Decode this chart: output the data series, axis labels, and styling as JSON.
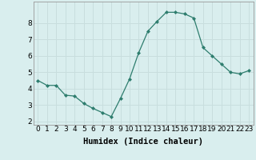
{
  "x": [
    0,
    1,
    2,
    3,
    4,
    5,
    6,
    7,
    8,
    9,
    10,
    11,
    12,
    13,
    14,
    15,
    16,
    17,
    18,
    19,
    20,
    21,
    22,
    23
  ],
  "y": [
    4.5,
    4.2,
    4.2,
    3.6,
    3.55,
    3.1,
    2.8,
    2.55,
    2.3,
    3.4,
    4.6,
    6.2,
    7.5,
    8.1,
    8.65,
    8.65,
    8.55,
    8.3,
    6.5,
    6.0,
    5.5,
    5.0,
    4.9,
    5.1
  ],
  "line_color": "#2e7d6e",
  "marker": "D",
  "marker_size": 2.0,
  "bg_color": "#d9eeee",
  "grid_color": "#c8dede",
  "xlabel": "Humidex (Indice chaleur)",
  "xlim": [
    -0.5,
    23.5
  ],
  "ylim": [
    1.8,
    9.3
  ],
  "yticks": [
    2,
    3,
    4,
    5,
    6,
    7,
    8
  ],
  "xticks": [
    0,
    1,
    2,
    3,
    4,
    5,
    6,
    7,
    8,
    9,
    10,
    11,
    12,
    13,
    14,
    15,
    16,
    17,
    18,
    19,
    20,
    21,
    22,
    23
  ],
  "xtick_labels": [
    "0",
    "1",
    "2",
    "3",
    "4",
    "5",
    "6",
    "7",
    "8",
    "9",
    "10",
    "11",
    "12",
    "13",
    "14",
    "15",
    "16",
    "17",
    "18",
    "19",
    "20",
    "21",
    "22",
    "23"
  ],
  "xlabel_fontsize": 7.5,
  "tick_fontsize": 6.5
}
